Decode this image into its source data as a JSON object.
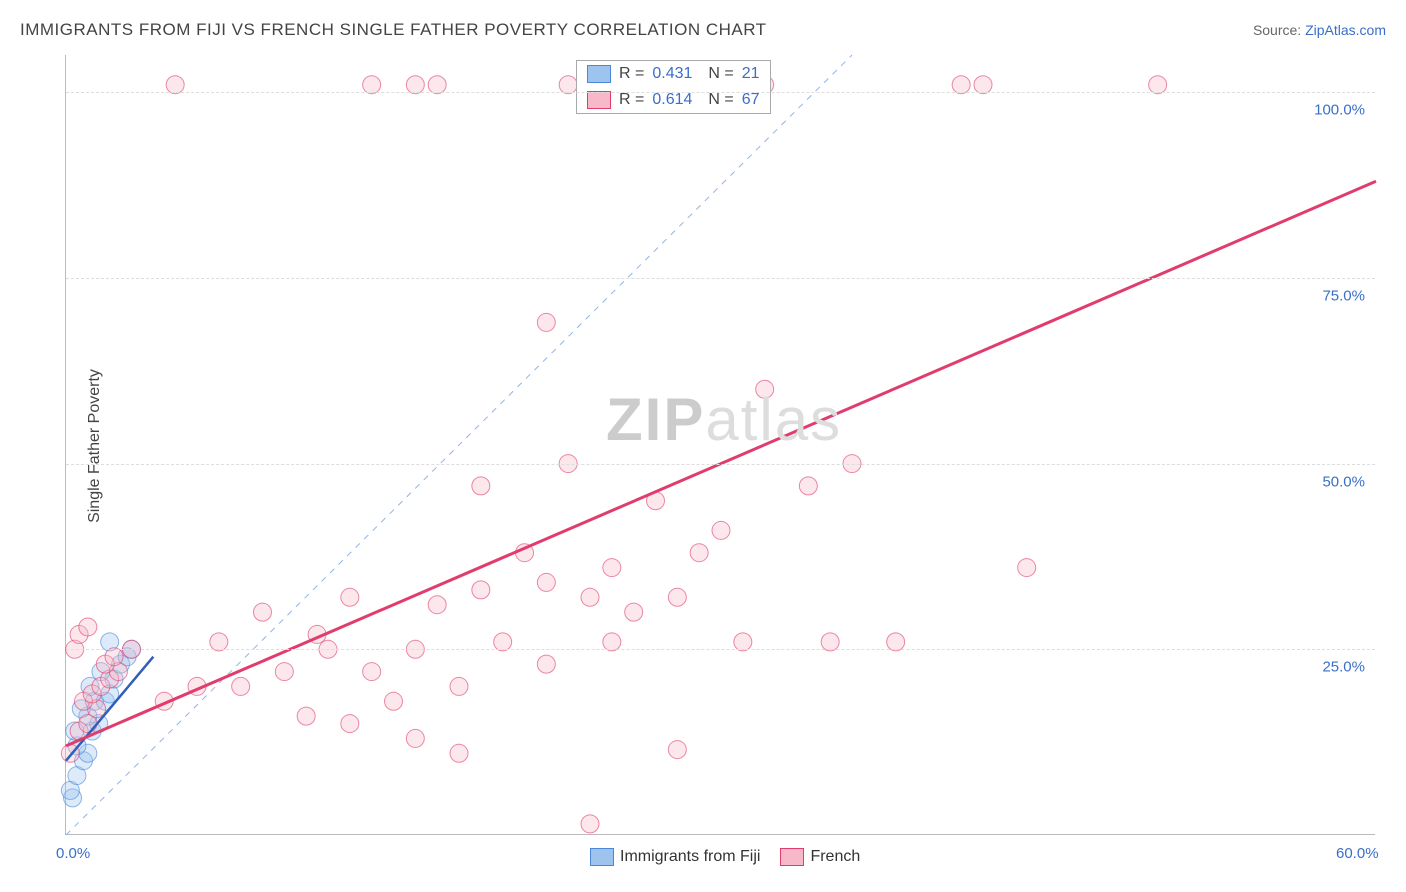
{
  "title": "IMMIGRANTS FROM FIJI VS FRENCH SINGLE FATHER POVERTY CORRELATION CHART",
  "source_label": "Source: ",
  "source_link": "ZipAtlas.com",
  "ylabel": "Single Father Poverty",
  "watermark_a": "ZIP",
  "watermark_b": "atlas",
  "chart": {
    "type": "scatter",
    "xlim": [
      0,
      60
    ],
    "ylim": [
      0,
      105
    ],
    "xticks": [
      {
        "v": 0,
        "l": "0.0%"
      },
      {
        "v": 60,
        "l": "60.0%"
      }
    ],
    "yticks": [
      {
        "v": 25,
        "l": "25.0%"
      },
      {
        "v": 50,
        "l": "50.0%"
      },
      {
        "v": 75,
        "l": "75.0%"
      },
      {
        "v": 100,
        "l": "100.0%"
      }
    ],
    "grid_color": "#dddddd",
    "axis_color": "#bbbbbb",
    "background": "#ffffff",
    "marker_radius": 9,
    "marker_opacity": 0.35,
    "diagonal_dash_color": "#90b5e6",
    "series": [
      {
        "key": "fiji",
        "label": "Immigrants from Fiji",
        "fill": "#9cc4ef",
        "stroke": "#4a87d8",
        "R": "0.431",
        "N": "21",
        "trend": {
          "x1": 0,
          "y1": 10,
          "x2": 4,
          "y2": 24,
          "color": "#2f5fb8",
          "width": 2.5
        },
        "points": [
          [
            0.3,
            5
          ],
          [
            0.2,
            6
          ],
          [
            0.5,
            8
          ],
          [
            0.8,
            10
          ],
          [
            1.0,
            11
          ],
          [
            0.5,
            12
          ],
          [
            0.4,
            14
          ],
          [
            1.2,
            14
          ],
          [
            1.5,
            15
          ],
          [
            1.0,
            16
          ],
          [
            0.7,
            17
          ],
          [
            1.3,
            18
          ],
          [
            1.8,
            18
          ],
          [
            2.0,
            19
          ],
          [
            1.1,
            20
          ],
          [
            2.2,
            21
          ],
          [
            1.6,
            22
          ],
          [
            2.5,
            23
          ],
          [
            2.8,
            24
          ],
          [
            3.0,
            25
          ],
          [
            2.0,
            26
          ]
        ]
      },
      {
        "key": "french",
        "label": "French",
        "fill": "#f7b9c9",
        "stroke": "#e03c6d",
        "R": "0.614",
        "N": "67",
        "trend": {
          "x1": 0,
          "y1": 12,
          "x2": 60,
          "y2": 88,
          "color": "#e03c6d",
          "width": 3
        },
        "points": [
          [
            0.2,
            11
          ],
          [
            0.6,
            14
          ],
          [
            1.0,
            15
          ],
          [
            1.4,
            17
          ],
          [
            0.8,
            18
          ],
          [
            1.2,
            19
          ],
          [
            1.6,
            20
          ],
          [
            2.0,
            21
          ],
          [
            2.4,
            22
          ],
          [
            1.8,
            23
          ],
          [
            2.2,
            24
          ],
          [
            0.4,
            25
          ],
          [
            3.0,
            25
          ],
          [
            0.6,
            27
          ],
          [
            1.0,
            28
          ],
          [
            24,
            1.5
          ],
          [
            4.5,
            18
          ],
          [
            6,
            20
          ],
          [
            7,
            26
          ],
          [
            8,
            20
          ],
          [
            9,
            30
          ],
          [
            10,
            22
          ],
          [
            11,
            16
          ],
          [
            11.5,
            27
          ],
          [
            12,
            25
          ],
          [
            13,
            32
          ],
          [
            13,
            15
          ],
          [
            14,
            22
          ],
          [
            15,
            18
          ],
          [
            16,
            25
          ],
          [
            16,
            13
          ],
          [
            17,
            31
          ],
          [
            18,
            20
          ],
          [
            18,
            11
          ],
          [
            19,
            47
          ],
          [
            19,
            33
          ],
          [
            20,
            26
          ],
          [
            21,
            38
          ],
          [
            22,
            34
          ],
          [
            22,
            23
          ],
          [
            23,
            50
          ],
          [
            24,
            32
          ],
          [
            25,
            26
          ],
          [
            25,
            36
          ],
          [
            26,
            30
          ],
          [
            27,
            45
          ],
          [
            28,
            32
          ],
          [
            28,
            11.5
          ],
          [
            29,
            38
          ],
          [
            30,
            41
          ],
          [
            31,
            26
          ],
          [
            32,
            60
          ],
          [
            34,
            47
          ],
          [
            35,
            26
          ],
          [
            36,
            50
          ],
          [
            44,
            36
          ],
          [
            38,
            26
          ],
          [
            22,
            69
          ],
          [
            23,
            101
          ],
          [
            32,
            101
          ],
          [
            41,
            101
          ],
          [
            42,
            101
          ],
          [
            50,
            101
          ],
          [
            5,
            101
          ],
          [
            14,
            101
          ],
          [
            16,
            101
          ],
          [
            17,
            101
          ]
        ]
      }
    ]
  },
  "stats_box": {
    "R_label": "R =",
    "N_label": "N ="
  },
  "legend": {
    "label_fiji": "Immigrants from Fiji",
    "label_french": "French"
  }
}
